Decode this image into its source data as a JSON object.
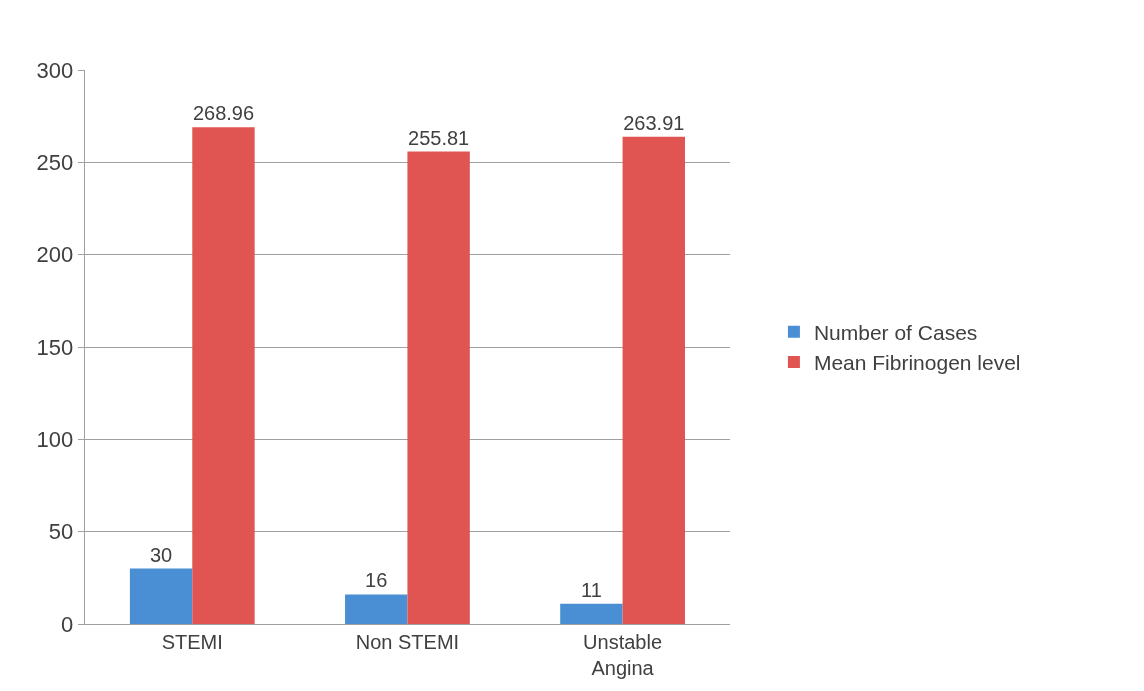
{
  "chart_data": {
    "type": "bar",
    "categories": [
      "STEMI",
      "Non STEMI",
      "Unstable Angina"
    ],
    "series": [
      {
        "name": "Number of Cases",
        "color": "#4a8fd4",
        "values": [
          30,
          16,
          11
        ]
      },
      {
        "name": "Mean Fibrinogen level",
        "color": "#e05552",
        "values": [
          268.96,
          255.81,
          263.91
        ]
      }
    ],
    "ylim": [
      0,
      300
    ],
    "yticks": [
      0,
      50,
      100,
      150,
      200,
      250,
      300
    ],
    "grid": "y",
    "legend": "right",
    "data_labels": true
  }
}
